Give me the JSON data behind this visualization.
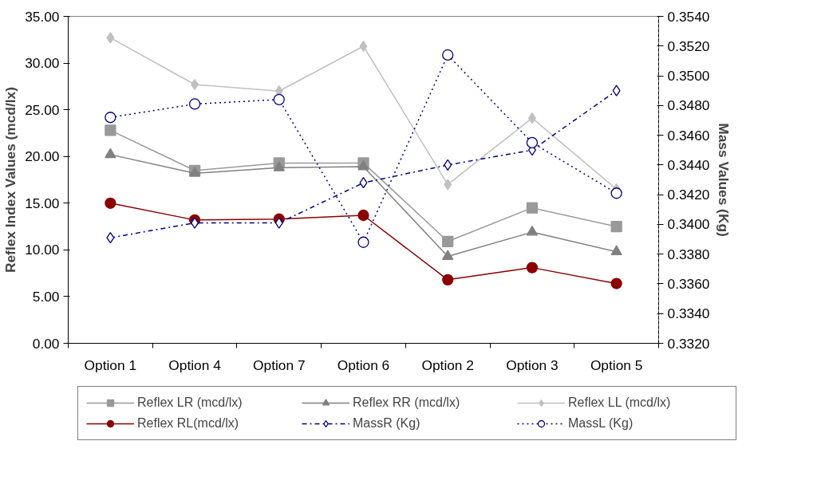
{
  "chart_data": {
    "type": "line",
    "ylabel": "Reflex Index Values (mcd/lx)",
    "y2label": "Mass Values (Kg)",
    "categories": [
      "Option 1",
      "Option 4",
      "Option 7",
      "Option 6",
      "Option 2",
      "Option 3",
      "Option 5"
    ],
    "ylim": [
      0,
      35
    ],
    "yticks": [
      {
        "value": 0,
        "label": "0.00"
      },
      {
        "value": 5,
        "label": "5.00"
      },
      {
        "value": 10,
        "label": "10.00"
      },
      {
        "value": 15,
        "label": "15.00"
      },
      {
        "value": 20,
        "label": "20.00"
      },
      {
        "value": 25,
        "label": "25.00"
      },
      {
        "value": 30,
        "label": "30.00"
      },
      {
        "value": 35,
        "label": "35.00"
      }
    ],
    "y2lim": [
      0.332,
      0.354
    ],
    "y2ticks": [
      {
        "value": 0.332,
        "label": "0.3320"
      },
      {
        "value": 0.334,
        "label": "0.3340"
      },
      {
        "value": 0.336,
        "label": "0.3360"
      },
      {
        "value": 0.338,
        "label": "0.3380"
      },
      {
        "value": 0.34,
        "label": "0.3400"
      },
      {
        "value": 0.342,
        "label": "0.3420"
      },
      {
        "value": 0.344,
        "label": "0.3440"
      },
      {
        "value": 0.346,
        "label": "0.3460"
      },
      {
        "value": 0.348,
        "label": "0.3480"
      },
      {
        "value": 0.35,
        "label": "0.3500"
      },
      {
        "value": 0.352,
        "label": "0.3520"
      },
      {
        "value": 0.354,
        "label": "0.3540"
      }
    ],
    "legend": "bottom",
    "series": [
      {
        "name": "Reflex LR (mcd/lx)",
        "color": "#999999",
        "marker": "square",
        "line_style": "solid",
        "values": [
          22.8,
          18.5,
          19.3,
          19.3,
          10.9,
          14.5,
          12.5
        ]
      },
      {
        "name": "Reflex RR (mcd/lx)",
        "color": "#808080",
        "marker": "triangle",
        "line_style": "solid",
        "values": [
          20.2,
          18.2,
          18.8,
          18.9,
          9.3,
          11.9,
          9.8
        ]
      },
      {
        "name": "Reflex LL (mcd/lx)",
        "color": "#c0c0c0",
        "marker": "diamond",
        "line_style": "solid",
        "values": [
          32.7,
          27.7,
          27.0,
          31.8,
          17.0,
          24.1,
          16.5
        ]
      },
      {
        "name": "Reflex RL(mcd/lx)",
        "color": "#8b0000",
        "marker": "circle",
        "line_style": "solid",
        "values": [
          15.0,
          13.2,
          13.3,
          13.7,
          6.8,
          8.1,
          6.4
        ]
      },
      {
        "name": "MassR (Kg)",
        "color": "#000080",
        "marker": "diamond",
        "line_style": "dashdot",
        "axis": "y2",
        "values": [
          0.3391,
          0.3401,
          0.3401,
          0.3428,
          0.344,
          0.345,
          0.349
        ]
      },
      {
        "name": "MassL (Kg)",
        "color": "#000080",
        "marker": "circle",
        "line_style": "dotted",
        "axis": "y2",
        "values": [
          0.3472,
          0.3481,
          0.3484,
          0.3388,
          0.3514,
          0.3455,
          0.3421
        ]
      }
    ]
  }
}
